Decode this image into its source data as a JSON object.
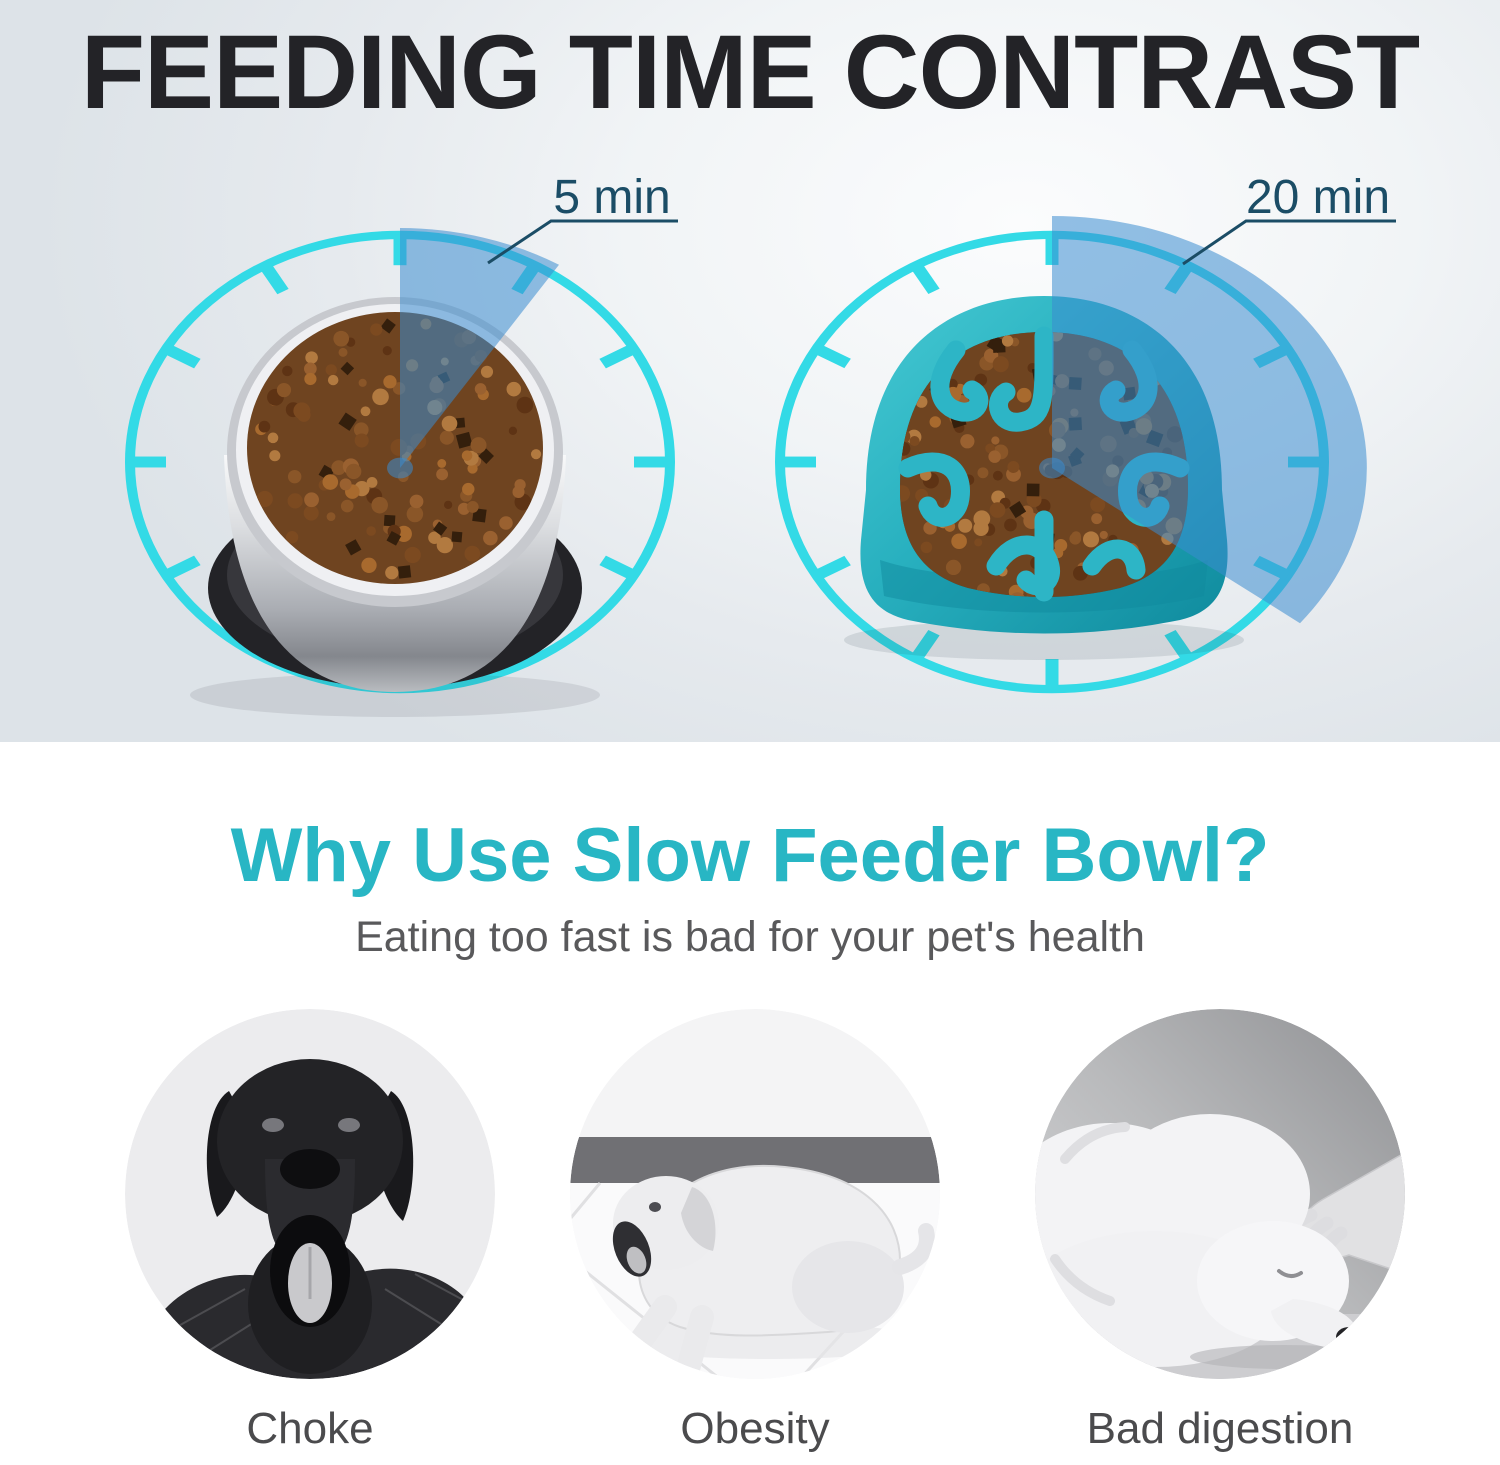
{
  "hero": {
    "title": "FEEDING TIME CONTRAST",
    "clocks": [
      {
        "label": "5 min",
        "bowl": "standard-steel-bowl",
        "minutes": 5,
        "wedge_degrees": 32,
        "tick_count": 12
      },
      {
        "label": "20 min",
        "bowl": "slow-feeder-maze-bowl",
        "minutes": 20,
        "wedge_degrees": 128,
        "tick_count": 12
      }
    ]
  },
  "benefits": {
    "heading": "Why Use Slow Feeder Bowl?",
    "subheading": "Eating too fast is bad for your pet's health",
    "items": [
      {
        "caption": "Choke",
        "image": "black-lab-yawning-in-suit-photo"
      },
      {
        "caption": "Obesity",
        "image": "overweight-lab-lying-on-floor-photo"
      },
      {
        "caption": "Bad digestion",
        "image": "white-dog-head-petted-by-hand-photo"
      }
    ]
  },
  "colors": {
    "accent_cyan": "#33dae6",
    "wedge_blue": "rgba(58,140,208,0.55)",
    "time_label_teal": "#1b4d66",
    "heading_teal": "#28b6c4",
    "title_dark": "#232327",
    "subtitle_gray": "#59595b",
    "caption_gray": "#4b4b4d",
    "feeder_teal": "#28b0bf",
    "kibble_brown": "#6f4420"
  }
}
